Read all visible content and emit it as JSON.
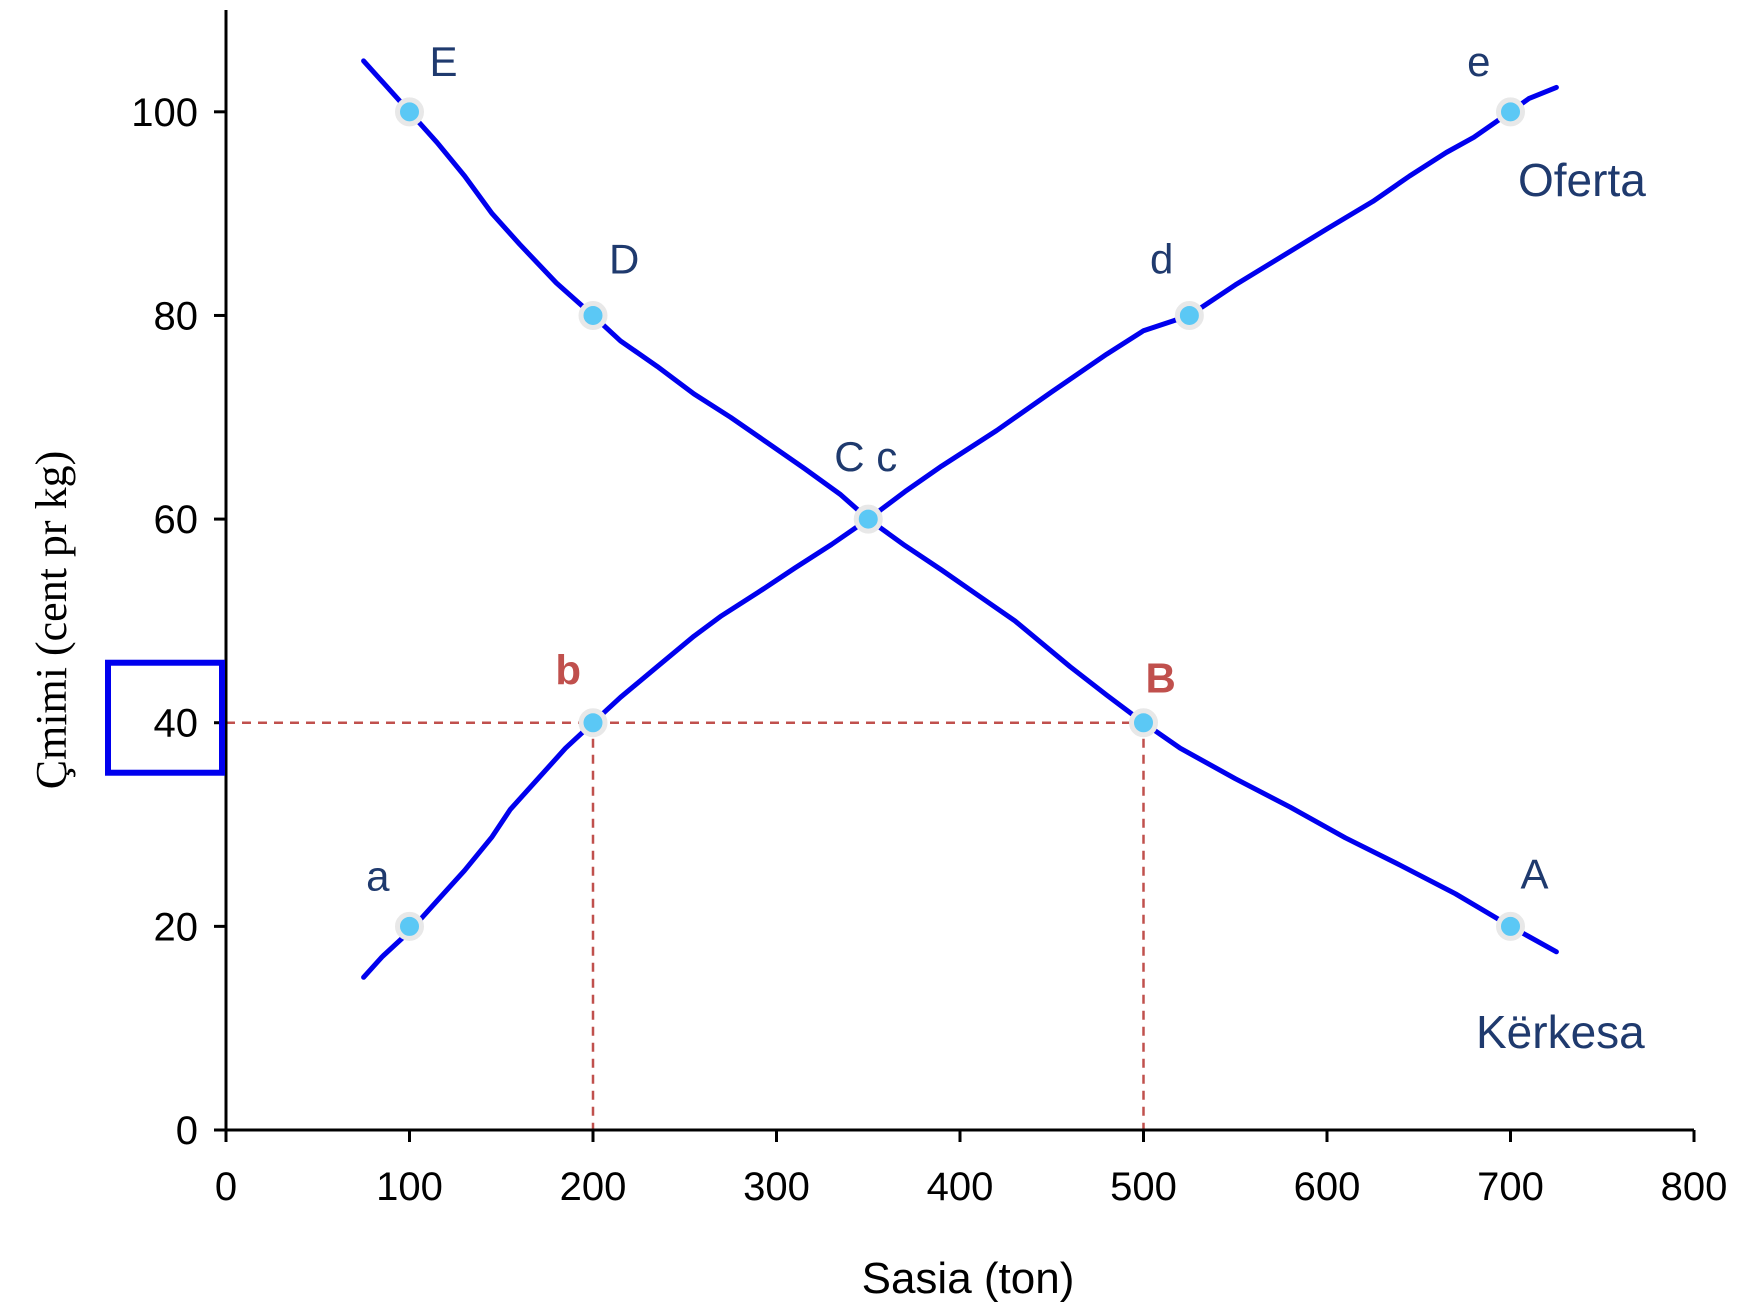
{
  "chart_data": {
    "type": "line",
    "xlabel": "Sasia (ton)",
    "ylabel": "Çmimi (cent pr kg)",
    "xlim": [
      0,
      800
    ],
    "ylim": [
      0,
      110
    ],
    "x_ticks": [
      0,
      100,
      200,
      300,
      400,
      500,
      600,
      700,
      800
    ],
    "y_ticks": [
      0,
      20,
      40,
      60,
      80,
      100
    ],
    "grid": false,
    "series": [
      {
        "name": "Oferta",
        "color": "#0000ee",
        "x": [
          75,
          85,
          100,
          115,
          130,
          145,
          155,
          170,
          185,
          200,
          215,
          235,
          255,
          270,
          290,
          310,
          330,
          350,
          370,
          390,
          420,
          450,
          480,
          500,
          525,
          550,
          570,
          600,
          625,
          645,
          665,
          680,
          700,
          710,
          725
        ],
        "y": [
          15,
          17,
          19.5,
          22.5,
          25.5,
          28.8,
          31.5,
          34.5,
          37.5,
          40,
          42.5,
          45.5,
          48.5,
          50.5,
          52.8,
          55.2,
          57.5,
          60,
          62.7,
          65.2,
          68.7,
          72.5,
          76.2,
          78.5,
          80,
          83,
          85.2,
          88.5,
          91.2,
          93.7,
          96,
          97.5,
          100,
          101.3,
          102.4
        ]
      },
      {
        "name": "Kërkesa",
        "color": "#0000ee",
        "x": [
          75,
          85,
          100,
          115,
          130,
          145,
          160,
          180,
          200,
          215,
          235,
          255,
          275,
          295,
          315,
          335,
          350,
          370,
          390,
          410,
          430,
          460,
          480,
          500,
          520,
          550,
          580,
          610,
          640,
          670,
          700,
          710,
          725
        ],
        "y": [
          105,
          103,
          100,
          97,
          93.7,
          90,
          87,
          83.2,
          80,
          77.5,
          75,
          72.3,
          70,
          67.5,
          65,
          62.4,
          60,
          57.4,
          55,
          52.5,
          50,
          45.5,
          42.7,
          40,
          37.5,
          34.5,
          31.7,
          28.7,
          26,
          23.2,
          20,
          19,
          17.5
        ]
      }
    ],
    "points": [
      {
        "label": "a",
        "x": 100,
        "y": 20
      },
      {
        "label": "b",
        "x": 200,
        "y": 40,
        "highlight": true
      },
      {
        "label": "C c",
        "x": 350,
        "y": 60
      },
      {
        "label": "d",
        "x": 525,
        "y": 80
      },
      {
        "label": "e",
        "x": 700,
        "y": 100
      },
      {
        "label": "E",
        "x": 100,
        "y": 100
      },
      {
        "label": "D",
        "x": 200,
        "y": 80
      },
      {
        "label": "B",
        "x": 500,
        "y": 40,
        "highlight": true
      },
      {
        "label": "A",
        "x": 700,
        "y": 20
      }
    ],
    "reference_lines": {
      "price": 40,
      "quantities": [
        200,
        500
      ],
      "color": "#c0504d"
    },
    "highlighted_tick": 40,
    "colors": {
      "curve": "#0000ee",
      "point_fill": "#5bc8f5",
      "point_outline": "#e8e8e8",
      "label_text": "#1f3a6e",
      "highlight": "#c0504d",
      "highlight_box": "#0000ee"
    }
  }
}
